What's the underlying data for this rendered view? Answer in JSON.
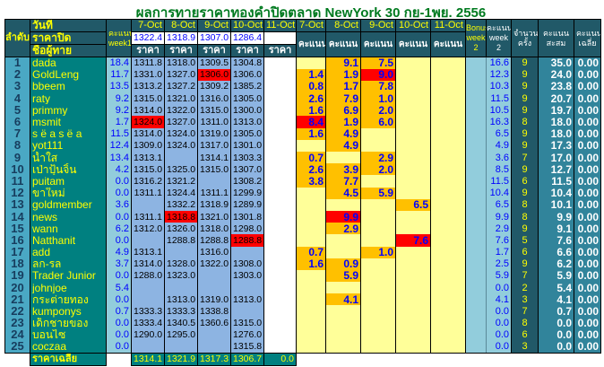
{
  "title": "ผลการทายราคาทองคำปิดตลาด NewYork 30 กย-1พย. 2556",
  "header": {
    "rank": "ลำดับ",
    "date_label": "วันที่",
    "close_label": "ราคาปิด",
    "name_label": "ชื่อผู้ทาย",
    "week1": "คะแนน week1",
    "dates": [
      "7-Oct",
      "8-Oct",
      "9-Oct",
      "10-Oct",
      "11-Oct"
    ],
    "closing_prices": [
      "1322.4",
      "1318.9",
      "1307.0",
      "1286.4",
      ""
    ],
    "price_label": "ราคา",
    "score_label": "คะแนน",
    "bonus_week2": "Bonus week 2",
    "score_week2": "คะแนน week 2",
    "count": "จำนวนครั้ง",
    "total": "คะแนนสะสม",
    "average": "คะแนนเฉลี่ย"
  },
  "colors": {
    "highlight": "#ffc000",
    "max": "#ff0000",
    "score_bg": "#ffff99",
    "price_bg": "#8db4e2"
  },
  "rows": [
    {
      "rank": "1",
      "name": "dada",
      "week1": "18.4",
      "prices": [
        "1311.8",
        "1318.0",
        "1309.5",
        "1304.8",
        ""
      ],
      "price_red": -1,
      "scores": [
        "",
        "9.1",
        "7.5",
        "",
        ""
      ],
      "score_red": -1,
      "week2": "16.6",
      "count": "9",
      "total": "35.0",
      "avg": "0.00"
    },
    {
      "rank": "2",
      "name": "GoldLeng",
      "week1": "11.7",
      "prices": [
        "1331.0",
        "1327.0",
        "1306.0",
        "1306.0",
        ""
      ],
      "price_red": 2,
      "scores": [
        "1.4",
        "1.9",
        "9.0",
        "",
        ""
      ],
      "score_red": 2,
      "week2": "12.3",
      "count": "9",
      "total": "24.0",
      "avg": "0.00"
    },
    {
      "rank": "3",
      "name": "bbeem",
      "week1": "13.5",
      "prices": [
        "1313.2",
        "1327.2",
        "1309.2",
        "1385.2",
        ""
      ],
      "price_red": -1,
      "scores": [
        "0.8",
        "1.7",
        "7.8",
        "",
        ""
      ],
      "score_red": -1,
      "week2": "10.3",
      "count": "9",
      "total": "23.8",
      "avg": "0.00"
    },
    {
      "rank": "4",
      "name": "raty",
      "week1": "9.2",
      "prices": [
        "1315.0",
        "1321.0",
        "1316.0",
        "1305.0",
        ""
      ],
      "price_red": -1,
      "scores": [
        "2.6",
        "7.9",
        "1.0",
        "",
        ""
      ],
      "score_red": -1,
      "week2": "11.5",
      "count": "9",
      "total": "20.7",
      "avg": "0.00"
    },
    {
      "rank": "5",
      "name": "primmy",
      "week1": "9.2",
      "prices": [
        "1314.0",
        "1322.0",
        "1315.0",
        "1300.0",
        ""
      ],
      "price_red": -1,
      "scores": [
        "1.6",
        "6.9",
        "2.0",
        "",
        ""
      ],
      "score_red": -1,
      "week2": "10.5",
      "count": "9",
      "total": "19.7",
      "avg": "0.00"
    },
    {
      "rank": "6",
      "name": "msmit",
      "week1": "1.7",
      "prices": [
        "1324.0",
        "1327.0",
        "1311.0",
        "1313.0",
        ""
      ],
      "price_red": 0,
      "scores": [
        "8.4",
        "1.9",
        "6.0",
        "",
        ""
      ],
      "score_red": 0,
      "week2": "16.3",
      "count": "8",
      "total": "18.0",
      "avg": "0.00"
    },
    {
      "rank": "7",
      "name": "s ë a s ë a",
      "week1": "11.5",
      "prices": [
        "1314.0",
        "1324.0",
        "1319.0",
        "1305.0",
        ""
      ],
      "price_red": -1,
      "scores": [
        "1.6",
        "4.9",
        "",
        "",
        ""
      ],
      "score_red": -1,
      "week2": "6.5",
      "count": "9",
      "total": "18.0",
      "avg": "0.00"
    },
    {
      "rank": "8",
      "name": "yot111",
      "week1": "12.4",
      "prices": [
        "1309.0",
        "1324.0",
        "1317.0",
        "1301.0",
        ""
      ],
      "price_red": -1,
      "scores": [
        "",
        "4.9",
        "",
        "",
        ""
      ],
      "score_red": -1,
      "week2": "4.9",
      "count": "9",
      "total": "17.3",
      "avg": "0.00"
    },
    {
      "rank": "9",
      "name": "น้ำใส",
      "week1": "13.4",
      "prices": [
        "1313.1",
        "",
        "1314.1",
        "1303.3",
        ""
      ],
      "price_red": -1,
      "scores": [
        "0.7",
        "",
        "2.9",
        "",
        ""
      ],
      "score_red": -1,
      "week2": "3.6",
      "count": "7",
      "total": "17.0",
      "avg": "0.00"
    },
    {
      "rank": "10",
      "name": "เป่าปุ้นจิ้น",
      "week1": "4.2",
      "prices": [
        "1315.0",
        "1325.0",
        "1315.0",
        "1307.0",
        ""
      ],
      "price_red": -1,
      "scores": [
        "2.6",
        "3.9",
        "2.0",
        "",
        ""
      ],
      "score_red": -1,
      "week2": "8.5",
      "count": "9",
      "total": "12.7",
      "avg": "0.00"
    },
    {
      "rank": "11",
      "name": "puitam",
      "week1": "0.0",
      "prices": [
        "1316.2",
        "1321.2",
        "",
        "1308.2",
        ""
      ],
      "price_red": -1,
      "scores": [
        "3.8",
        "7.7",
        "",
        "",
        ""
      ],
      "score_red": -1,
      "week2": "11.5",
      "count": "6",
      "total": "11.5",
      "avg": "0.00"
    },
    {
      "rank": "12",
      "name": "ขาใหม่",
      "week1": "0.0",
      "prices": [
        "1311.1",
        "1324.4",
        "1311.1",
        "1299.9",
        ""
      ],
      "price_red": -1,
      "scores": [
        "",
        "4.5",
        "5.9",
        "",
        ""
      ],
      "score_red": -1,
      "week2": "10.4",
      "count": "9",
      "total": "10.4",
      "avg": "0.00"
    },
    {
      "rank": "13",
      "name": "goldmember",
      "week1": "3.6",
      "prices": [
        "",
        "1332.2",
        "1318.9",
        "1289.9",
        ""
      ],
      "price_red": -1,
      "scores": [
        "",
        "",
        "",
        "6.5",
        ""
      ],
      "score_red": -1,
      "week2": "6.5",
      "count": "8",
      "total": "10.1",
      "avg": "0.00"
    },
    {
      "rank": "14",
      "name": "news",
      "week1": "0.0",
      "prices": [
        "1311.1",
        "1318.8",
        "1321.0",
        "1301.8",
        ""
      ],
      "price_red": 1,
      "scores": [
        "",
        "9.9",
        "",
        "",
        ""
      ],
      "score_red": 1,
      "week2": "9.9",
      "count": "8",
      "total": "9.9",
      "avg": "0.00"
    },
    {
      "rank": "15",
      "name": "wann",
      "week1": "6.2",
      "prices": [
        "1312.0",
        "1326.0",
        "1318.0",
        "1298.0",
        ""
      ],
      "price_red": -1,
      "scores": [
        "",
        "2.9",
        "",
        "",
        ""
      ],
      "score_red": -1,
      "week2": "2.9",
      "count": "9",
      "total": "9.1",
      "avg": "0.00"
    },
    {
      "rank": "16",
      "name": "Natthanit",
      "week1": "0.0",
      "prices": [
        "",
        "1288.8",
        "1288.8",
        "1288.8",
        ""
      ],
      "price_red": 3,
      "scores": [
        "",
        "",
        "",
        "7.6",
        ""
      ],
      "score_red": 3,
      "week2": "7.6",
      "count": "5",
      "total": "7.6",
      "avg": "0.00"
    },
    {
      "rank": "17",
      "name": "add",
      "week1": "4.9",
      "prices": [
        "1313.1",
        "",
        "1316.0",
        "",
        ""
      ],
      "price_red": -1,
      "scores": [
        "0.7",
        "",
        "1.0",
        "",
        ""
      ],
      "score_red": -1,
      "week2": "1.7",
      "count": "6",
      "total": "6.6",
      "avg": "0.00"
    },
    {
      "rank": "18",
      "name": "ลก-รล",
      "week1": "3.7",
      "prices": [
        "1314.0",
        "1328.0",
        "1322.0",
        "1308.0",
        ""
      ],
      "price_red": -1,
      "scores": [
        "1.6",
        "0.9",
        "",
        "",
        ""
      ],
      "score_red": -1,
      "week2": "2.5",
      "count": "9",
      "total": "6.2",
      "avg": "0.00"
    },
    {
      "rank": "19",
      "name": "Trader Junior",
      "week1": "0.0",
      "prices": [
        "1288.0",
        "1323.0",
        "",
        "1303.0",
        ""
      ],
      "price_red": -1,
      "scores": [
        "",
        "5.9",
        "",
        "",
        ""
      ],
      "score_red": -1,
      "week2": "5.9",
      "count": "7",
      "total": "5.9",
      "avg": "0.00"
    },
    {
      "rank": "20",
      "name": "johnjoe",
      "week1": "5.4",
      "prices": [
        "",
        "",
        "",
        "",
        ""
      ],
      "price_red": -1,
      "scores": [
        "",
        "",
        "",
        "",
        ""
      ],
      "score_red": -1,
      "week2": "0.0",
      "count": "2",
      "total": "5.4",
      "avg": "0.00"
    },
    {
      "rank": "21",
      "name": "กระต่ายทอง",
      "week1": "0.0",
      "prices": [
        "",
        "1313.0",
        "1319.0",
        "1313.0",
        ""
      ],
      "price_red": -1,
      "scores": [
        "",
        "4.1",
        "",
        "",
        ""
      ],
      "score_red": -1,
      "week2": "4.1",
      "count": "3",
      "total": "4.1",
      "avg": "0.00"
    },
    {
      "rank": "22",
      "name": "kumponys",
      "week1": "0.7",
      "prices": [
        "1333.3",
        "1333.3",
        "1338.8",
        "",
        ""
      ],
      "price_red": -1,
      "scores": [
        "",
        "",
        "",
        "",
        ""
      ],
      "score_red": -1,
      "week2": "0.0",
      "count": "7",
      "total": "0.7",
      "avg": "0.00"
    },
    {
      "rank": "23",
      "name": "เด็กชายของ",
      "week1": "0.0",
      "prices": [
        "1333.4",
        "1340.5",
        "1360.6",
        "1315.0",
        ""
      ],
      "price_red": -1,
      "scores": [
        "",
        "",
        "",
        "",
        ""
      ],
      "score_red": -1,
      "week2": "0.0",
      "count": "8",
      "total": "0.0",
      "avg": "0.00"
    },
    {
      "rank": "24",
      "name": "บอนไซ",
      "week1": "0.0",
      "prices": [
        "1290.0",
        "1295.0",
        "",
        "1276.0",
        ""
      ],
      "price_red": -1,
      "scores": [
        "",
        "",
        "",
        "",
        ""
      ],
      "score_red": -1,
      "week2": "0.0",
      "count": "6",
      "total": "0.0",
      "avg": "0.00"
    },
    {
      "rank": "25",
      "name": "coczaa",
      "week1": "0.0",
      "prices": [
        "",
        "",
        "",
        "1315.8",
        ""
      ],
      "price_red": -1,
      "scores": [
        "",
        "",
        "",
        "",
        ""
      ],
      "score_red": -1,
      "week2": "0.0",
      "count": "3",
      "total": "0.0",
      "avg": "0.00"
    }
  ],
  "footer": {
    "label": "ราคาเฉลี่ย",
    "averages": [
      "1314.1",
      "1321.9",
      "1317.3",
      "1306.7",
      "0.0"
    ]
  }
}
